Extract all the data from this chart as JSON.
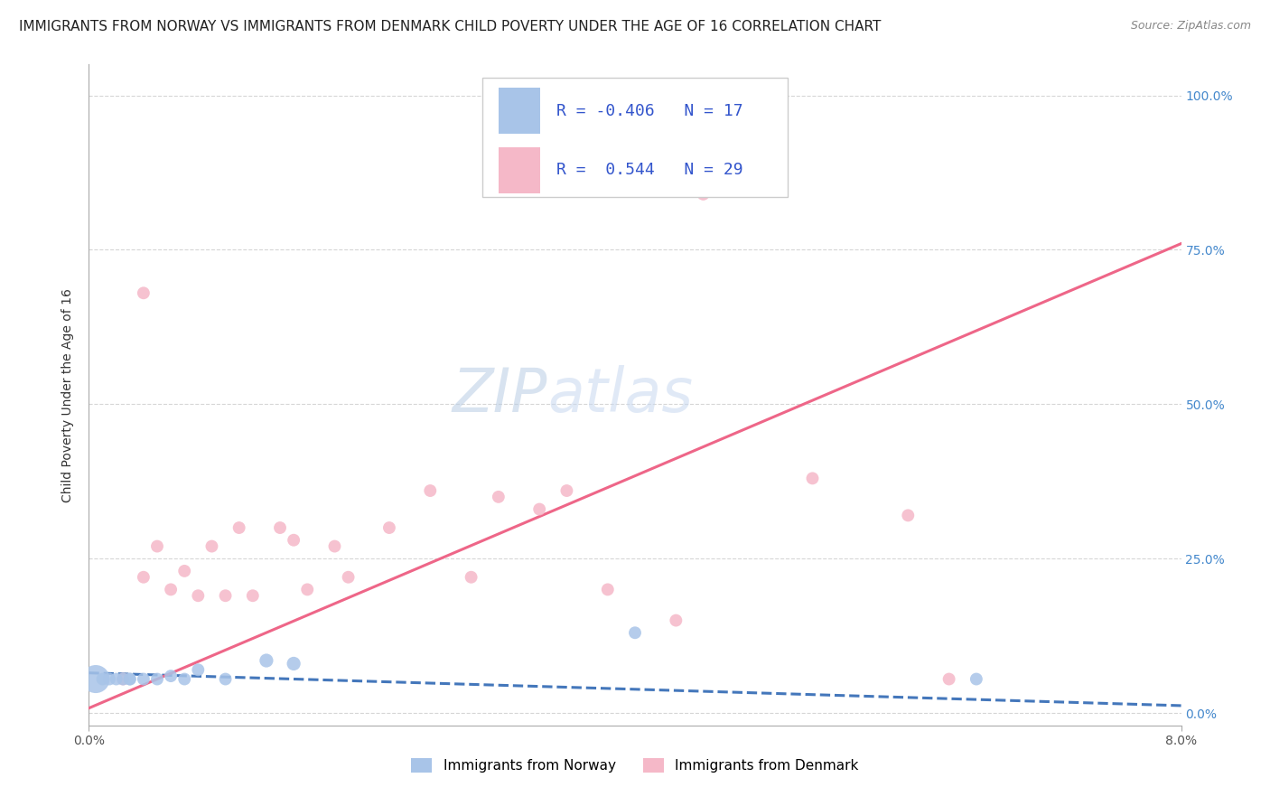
{
  "title": "IMMIGRANTS FROM NORWAY VS IMMIGRANTS FROM DENMARK CHILD POVERTY UNDER THE AGE OF 16 CORRELATION CHART",
  "source": "Source: ZipAtlas.com",
  "ylabel": "Child Poverty Under the Age of 16",
  "xlim": [
    0.0,
    0.08
  ],
  "ylim": [
    -0.02,
    1.05
  ],
  "x_tick_labels": [
    "0.0%",
    "8.0%"
  ],
  "x_tick_positions": [
    0.0,
    0.08
  ],
  "y_tick_labels": [
    "100.0%",
    "75.0%",
    "50.0%",
    "25.0%",
    "0.0%"
  ],
  "y_tick_positions": [
    1.0,
    0.75,
    0.5,
    0.25,
    0.0
  ],
  "norway_color": "#a8c4e8",
  "denmark_color": "#f5b8c8",
  "norway_line_color": "#4477bb",
  "denmark_line_color": "#ee6688",
  "norway_R": -0.406,
  "norway_N": 17,
  "denmark_R": 0.544,
  "denmark_N": 29,
  "legend_text_color": "#3355cc",
  "watermark_zip": "ZIP",
  "watermark_atlas": "atlas",
  "norway_scatter_x": [
    0.0005,
    0.001,
    0.0015,
    0.002,
    0.0025,
    0.003,
    0.003,
    0.004,
    0.005,
    0.006,
    0.007,
    0.008,
    0.01,
    0.013,
    0.015,
    0.04,
    0.065
  ],
  "norway_scatter_y": [
    0.055,
    0.055,
    0.055,
    0.055,
    0.055,
    0.055,
    0.055,
    0.055,
    0.055,
    0.06,
    0.055,
    0.07,
    0.055,
    0.085,
    0.08,
    0.13,
    0.055
  ],
  "norway_scatter_sizes": [
    500,
    100,
    100,
    100,
    100,
    100,
    100,
    100,
    100,
    100,
    100,
    100,
    100,
    120,
    120,
    100,
    100
  ],
  "denmark_scatter_x": [
    0.0025,
    0.004,
    0.004,
    0.005,
    0.006,
    0.007,
    0.008,
    0.009,
    0.01,
    0.011,
    0.012,
    0.014,
    0.015,
    0.016,
    0.018,
    0.019,
    0.022,
    0.025,
    0.028,
    0.03,
    0.033,
    0.035,
    0.038,
    0.043,
    0.045,
    0.048,
    0.053,
    0.06,
    0.063
  ],
  "denmark_scatter_y": [
    0.055,
    0.68,
    0.22,
    0.27,
    0.2,
    0.23,
    0.19,
    0.27,
    0.19,
    0.3,
    0.19,
    0.3,
    0.28,
    0.2,
    0.27,
    0.22,
    0.3,
    0.36,
    0.22,
    0.35,
    0.33,
    0.36,
    0.2,
    0.15,
    0.84,
    0.91,
    0.38,
    0.32,
    0.055
  ],
  "denmark_scatter_sizes": [
    100,
    100,
    100,
    100,
    100,
    100,
    100,
    100,
    100,
    100,
    100,
    100,
    100,
    100,
    100,
    100,
    100,
    100,
    100,
    100,
    100,
    100,
    100,
    100,
    100,
    100,
    100,
    100,
    100
  ],
  "background_color": "#ffffff",
  "grid_color": "#cccccc",
  "norway_line_x": [
    0.0,
    0.08
  ],
  "norway_line_y": [
    0.065,
    0.012
  ],
  "denmark_line_x": [
    0.0,
    0.08
  ],
  "denmark_line_y": [
    0.008,
    0.76
  ],
  "title_fontsize": 11,
  "source_fontsize": 9,
  "ylabel_fontsize": 10,
  "tick_fontsize": 10,
  "legend_fontsize": 13,
  "watermark_fontsize": 48,
  "watermark_color_zip": "#b8cce4",
  "watermark_color_atlas": "#c8d8f0",
  "watermark_alpha": 0.55,
  "right_tick_color": "#4488cc"
}
